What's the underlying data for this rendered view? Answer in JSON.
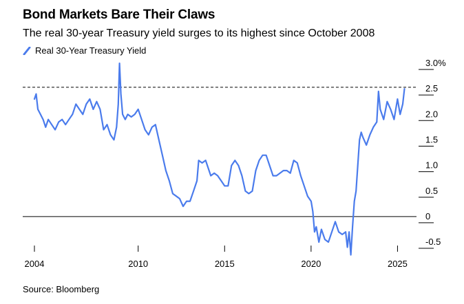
{
  "title": "Bond Markets Bare Their Claws",
  "subtitle": "The real 30-year Treasury yield surges to its highest since October 2008",
  "source": "Source: Bloomberg",
  "colors": {
    "series": "#4a7bec",
    "axis": "#000000",
    "reference": "#000000"
  },
  "chart_data": {
    "type": "line",
    "title": "Bond Markets Bare Their Claws",
    "subtitle": "The real 30-year Treasury yield surges to its highest since October 2008",
    "xlabel": "",
    "ylabel": "",
    "xlim": [
      2004,
      2025.5
    ],
    "ylim": [
      -0.75,
      3.0
    ],
    "grid": false,
    "legend": "top-left",
    "x_ticks": [
      2004,
      2010,
      2015,
      2020,
      2025
    ],
    "x_tick_labels": [
      "2004",
      "2010",
      "2015",
      "2020",
      "2025"
    ],
    "y_ticks": [
      3.0,
      2.5,
      2.0,
      1.5,
      1.0,
      0.5,
      0,
      -0.5
    ],
    "y_tick_labels": [
      "3.0%",
      "2.5",
      "2.0",
      "1.5",
      "1.0",
      "0.5",
      "0",
      "-0.5"
    ],
    "reference_lines": [
      {
        "axis": "y",
        "value": 2.53,
        "style": "dashed"
      },
      {
        "axis": "y",
        "value": 0,
        "style": "solid"
      }
    ],
    "series": [
      {
        "name": "Real 30-Year Treasury Yield",
        "color": "#4a7bec",
        "x": [
          2004.0,
          2004.1,
          2004.2,
          2004.35,
          2004.5,
          2004.65,
          2004.8,
          2005.0,
          2005.2,
          2005.4,
          2005.6,
          2005.8,
          2006.0,
          2006.2,
          2006.4,
          2006.6,
          2006.8,
          2007.0,
          2007.2,
          2007.4,
          2007.6,
          2007.8,
          2008.0,
          2008.2,
          2008.4,
          2008.6,
          2008.75,
          2008.85,
          2008.92,
          2009.0,
          2009.1,
          2009.25,
          2009.4,
          2009.6,
          2009.8,
          2010.0,
          2010.2,
          2010.4,
          2010.6,
          2010.8,
          2011.0,
          2011.2,
          2011.4,
          2011.6,
          2011.8,
          2012.0,
          2012.2,
          2012.4,
          2012.6,
          2012.8,
          2013.0,
          2013.2,
          2013.4,
          2013.5,
          2013.7,
          2013.9,
          2014.0,
          2014.2,
          2014.4,
          2014.6,
          2014.8,
          2015.0,
          2015.2,
          2015.4,
          2015.6,
          2015.8,
          2016.0,
          2016.2,
          2016.4,
          2016.6,
          2016.8,
          2017.0,
          2017.2,
          2017.4,
          2017.6,
          2017.8,
          2018.0,
          2018.2,
          2018.4,
          2018.6,
          2018.8,
          2019.0,
          2019.2,
          2019.4,
          2019.6,
          2019.8,
          2020.0,
          2020.1,
          2020.2,
          2020.3,
          2020.45,
          2020.6,
          2020.8,
          2021.0,
          2021.2,
          2021.4,
          2021.6,
          2021.8,
          2022.0,
          2022.1,
          2022.2,
          2022.3,
          2022.4,
          2022.5,
          2022.6,
          2022.7,
          2022.8,
          2022.9,
          2023.0,
          2023.2,
          2023.4,
          2023.6,
          2023.8,
          2023.9,
          2024.0,
          2024.2,
          2024.4,
          2024.6,
          2024.8,
          2025.0,
          2025.15,
          2025.3,
          2025.4
        ],
        "values": [
          2.3,
          2.4,
          2.1,
          2.0,
          1.9,
          1.75,
          1.9,
          1.8,
          1.7,
          1.85,
          1.9,
          1.8,
          1.9,
          2.0,
          2.2,
          2.1,
          2.0,
          2.2,
          2.3,
          2.1,
          2.25,
          2.1,
          1.7,
          1.8,
          1.6,
          1.5,
          1.75,
          2.2,
          3.0,
          2.4,
          2.0,
          1.9,
          2.0,
          1.95,
          2.0,
          2.1,
          1.9,
          1.7,
          1.6,
          1.75,
          1.8,
          1.5,
          1.2,
          0.9,
          0.7,
          0.45,
          0.4,
          0.35,
          0.2,
          0.3,
          0.3,
          0.5,
          0.7,
          1.1,
          1.05,
          1.1,
          1.0,
          0.8,
          0.85,
          0.8,
          0.7,
          0.6,
          0.6,
          1.0,
          1.1,
          1.0,
          0.8,
          0.5,
          0.45,
          0.5,
          0.9,
          1.1,
          1.2,
          1.2,
          1.0,
          0.8,
          0.8,
          0.85,
          0.9,
          0.9,
          0.85,
          1.1,
          1.05,
          0.8,
          0.6,
          0.4,
          0.3,
          0.1,
          -0.3,
          -0.2,
          -0.5,
          -0.25,
          -0.45,
          -0.5,
          -0.3,
          -0.1,
          -0.3,
          -0.35,
          -0.3,
          -0.6,
          -0.3,
          -0.75,
          -0.2,
          0.3,
          0.5,
          1.0,
          1.5,
          1.65,
          1.55,
          1.4,
          1.6,
          1.75,
          1.85,
          2.45,
          2.1,
          1.9,
          2.25,
          2.1,
          1.9,
          2.3,
          2.0,
          2.2,
          2.5
        ]
      }
    ]
  }
}
